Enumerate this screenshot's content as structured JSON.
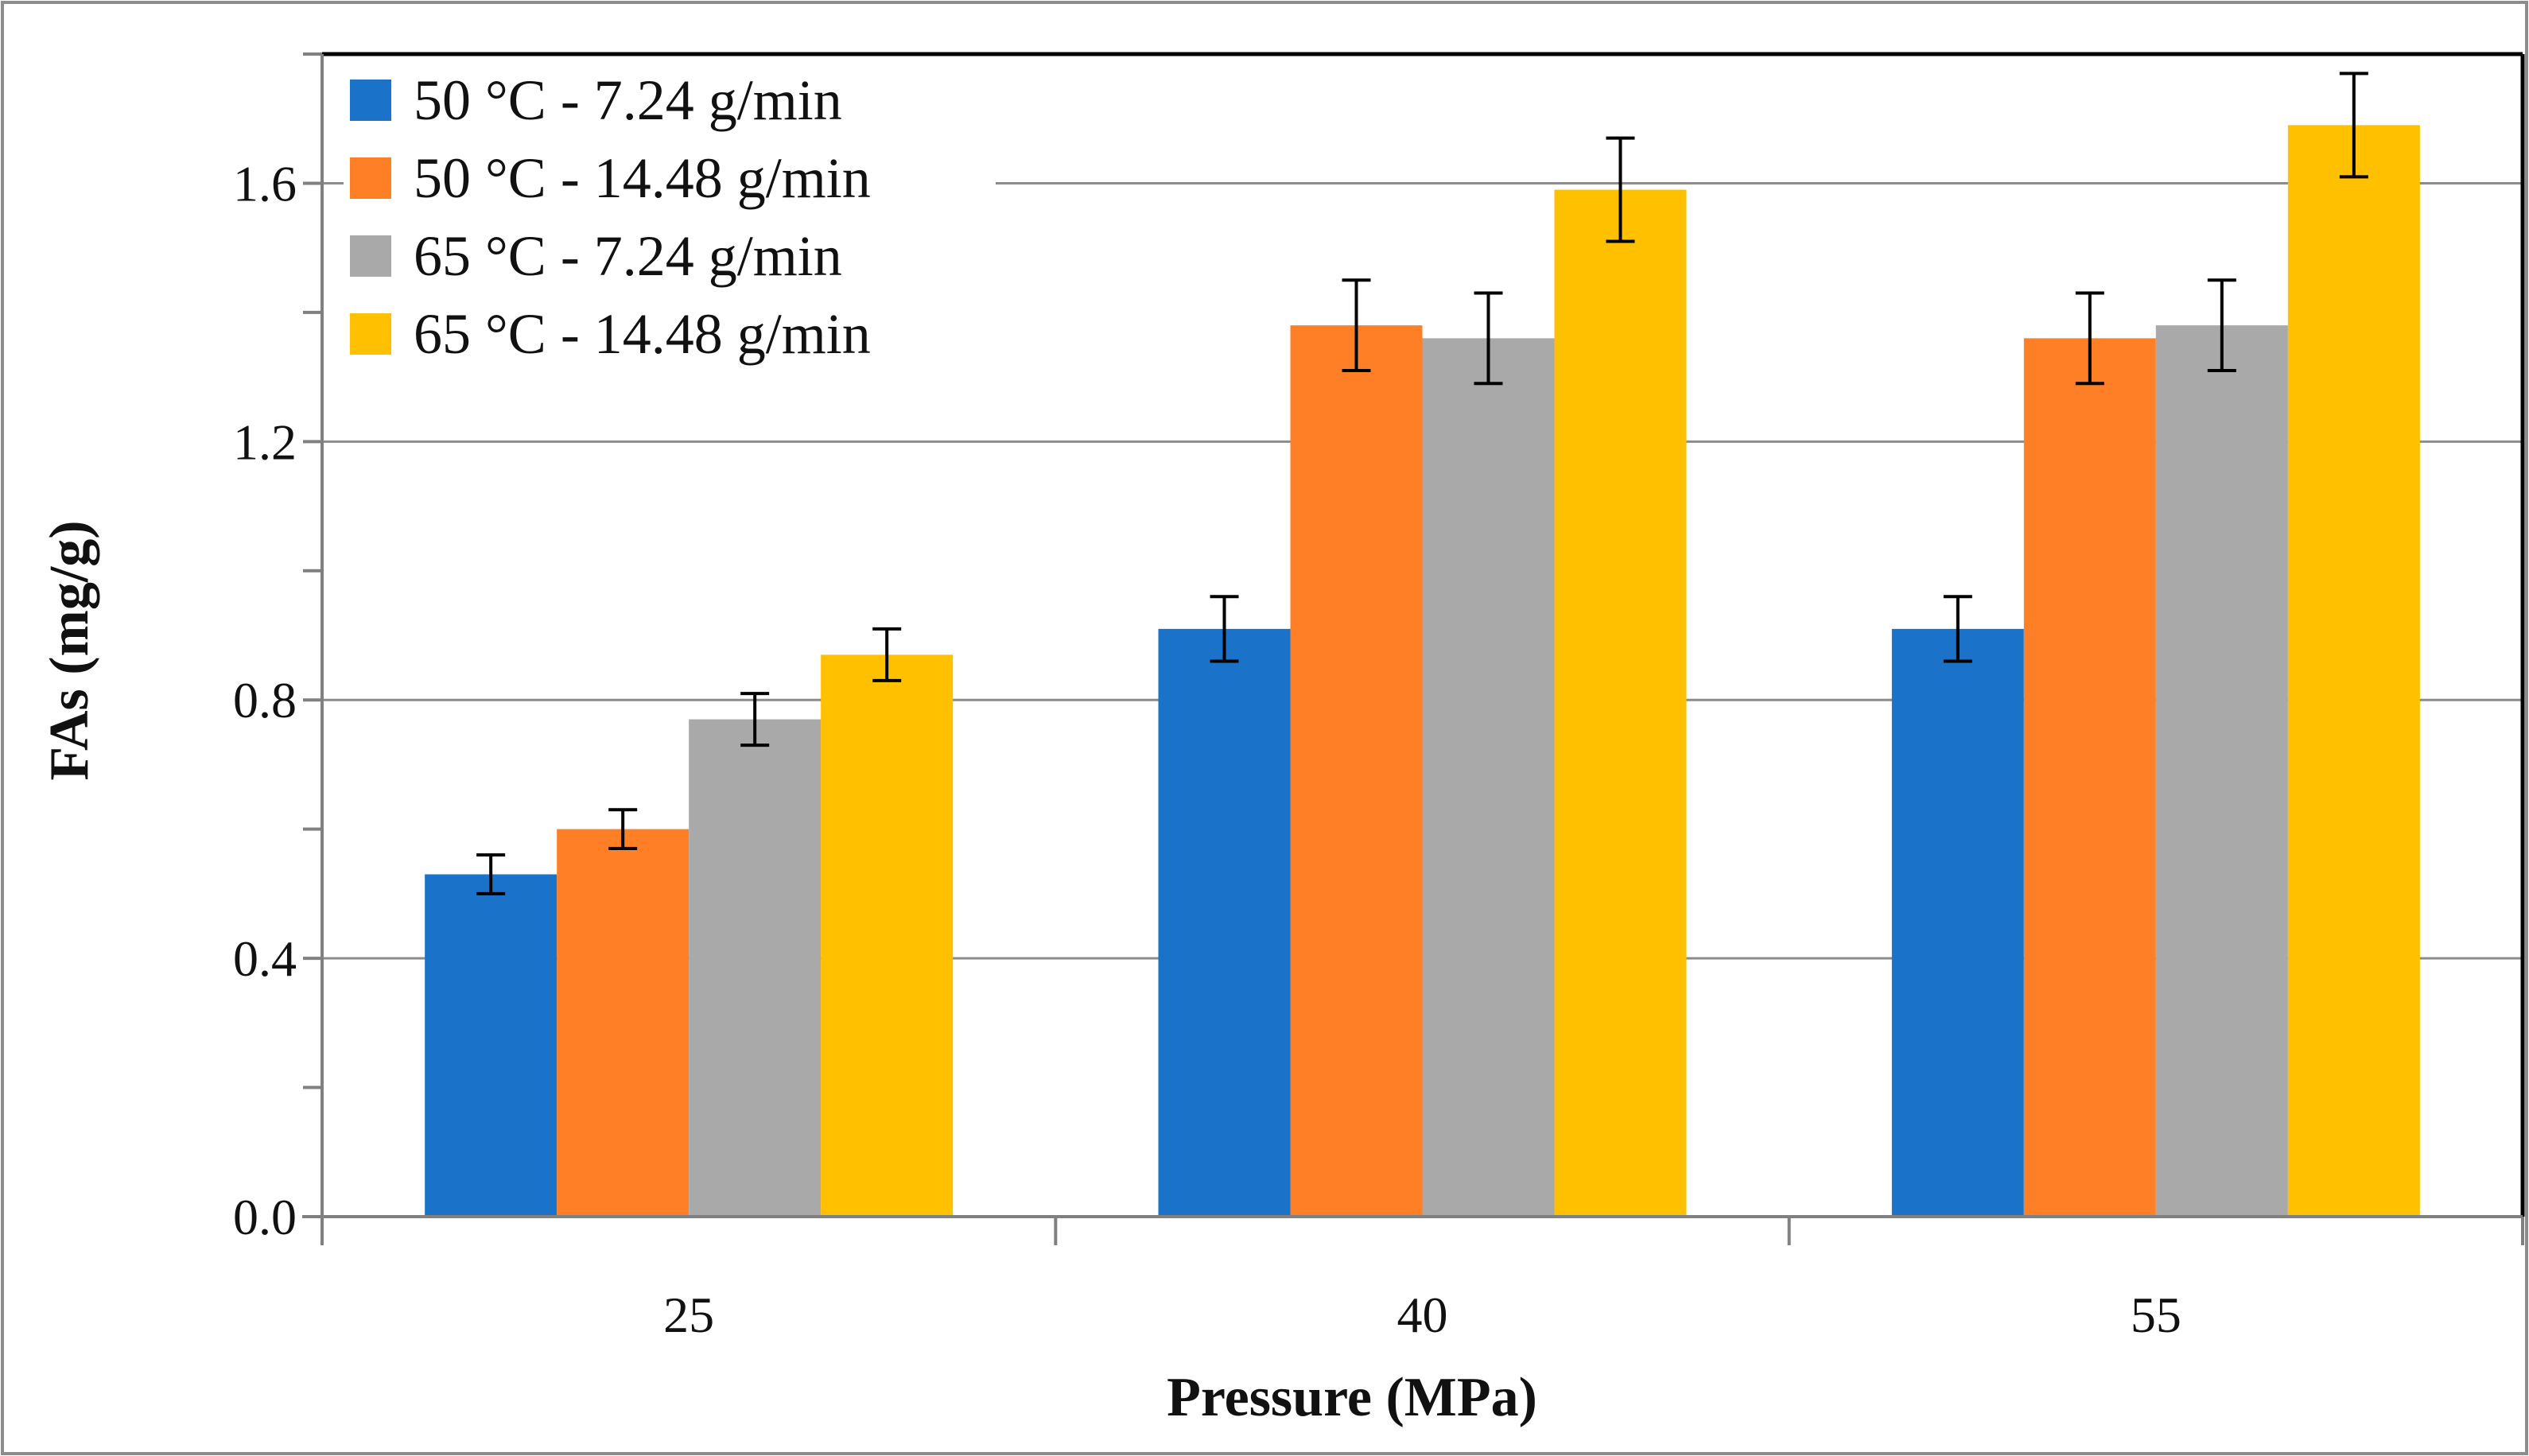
{
  "chart_data": {
    "type": "bar",
    "title": "",
    "xlabel": "Pressure (MPa)",
    "ylabel": "FAs (mg/g)",
    "categories": [
      "25",
      "40",
      "55"
    ],
    "ylim": [
      0,
      1.8
    ],
    "yticks": [
      0.0,
      0.4,
      0.8,
      1.2,
      1.6
    ],
    "ytick_labels": [
      "0.0",
      "0.4",
      "0.8",
      "1.2",
      "1.6"
    ],
    "grid": true,
    "legend_position": "top-left",
    "series": [
      {
        "name": "50 °C - 7.24 g/min",
        "color": "#1a73c9",
        "values": [
          0.53,
          0.91,
          0.91
        ],
        "errors": [
          0.03,
          0.05,
          0.05
        ]
      },
      {
        "name": "50 °C - 14.48 g/min",
        "color": "#ff7f27",
        "values": [
          0.6,
          1.38,
          1.36
        ],
        "errors": [
          0.03,
          0.07,
          0.07
        ]
      },
      {
        "name": "65 °C - 7.24 g/min",
        "color": "#a9a9a9",
        "values": [
          0.77,
          1.36,
          1.38
        ],
        "errors": [
          0.04,
          0.07,
          0.07
        ]
      },
      {
        "name": "65 °C - 14.48 g/min",
        "color": "#ffc000",
        "values": [
          0.87,
          1.59,
          1.69
        ],
        "errors": [
          0.04,
          0.08,
          0.08
        ]
      }
    ]
  }
}
